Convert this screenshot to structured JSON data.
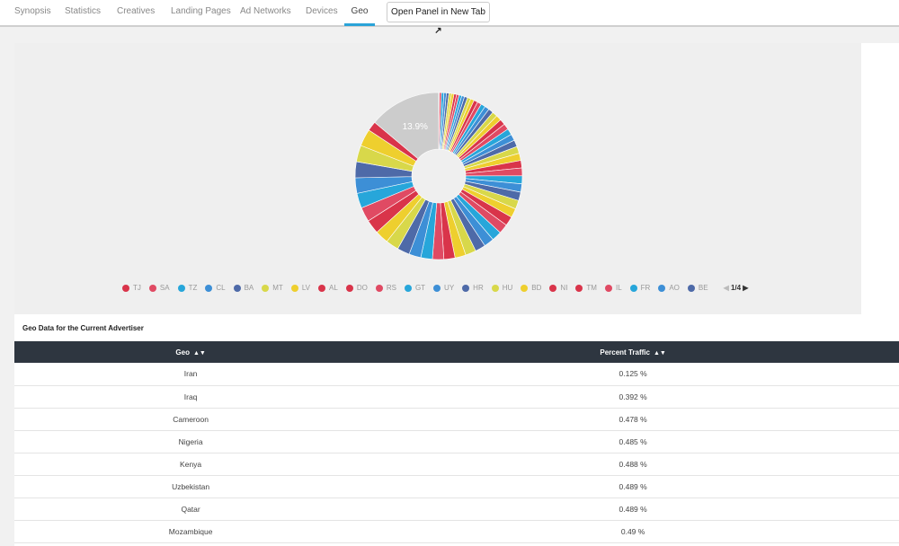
{
  "tabs": [
    "Synopsis",
    "Statistics",
    "Creatives",
    "Landing Pages",
    "Ad Networks",
    "Devices",
    "Geo"
  ],
  "active_tab": "Geo",
  "open_button": "Open Panel in New Tab",
  "open_icon": "external-link-icon",
  "chart_data": {
    "type": "pie",
    "other_label": "13.9%",
    "other_value": 13.9,
    "other_color": "#cccccc",
    "values": [
      0.125,
      0.392,
      0.478,
      0.485,
      0.488,
      0.489,
      0.489,
      0.49,
      0.5,
      0.52,
      0.55,
      0.6,
      0.65,
      0.7,
      0.75,
      0.8,
      0.85,
      0.9,
      0.95,
      1.0,
      1.05,
      1.1,
      1.15,
      1.2,
      1.25,
      1.3,
      1.35,
      1.4,
      1.45,
      1.5,
      1.55,
      1.6,
      1.65,
      1.7,
      1.75,
      1.8,
      1.85,
      1.9,
      1.95,
      2.0,
      2.05,
      2.1,
      2.15,
      2.2,
      2.25,
      2.3,
      2.4,
      2.5,
      2.6,
      2.7,
      2.8,
      2.9,
      3.0,
      3.1,
      3.2,
      3.3,
      1.84
    ],
    "palette": [
      "#d9344a",
      "#e04a63",
      "#27a6da",
      "#3d8fd6",
      "#4e6aa8",
      "#d8d84a",
      "#eecf2e"
    ],
    "legend": [
      {
        "label": "TJ",
        "color": "#d9344a"
      },
      {
        "label": "SA",
        "color": "#e04a63"
      },
      {
        "label": "TZ",
        "color": "#27a6da"
      },
      {
        "label": "CL",
        "color": "#3d8fd6"
      },
      {
        "label": "BA",
        "color": "#4e6aa8"
      },
      {
        "label": "MT",
        "color": "#d8d84a"
      },
      {
        "label": "LV",
        "color": "#eecf2e"
      },
      {
        "label": "AL",
        "color": "#d9344a"
      },
      {
        "label": "DO",
        "color": "#d9344a"
      },
      {
        "label": "RS",
        "color": "#e04a63"
      },
      {
        "label": "GT",
        "color": "#27a6da"
      },
      {
        "label": "UY",
        "color": "#3d8fd6"
      },
      {
        "label": "HR",
        "color": "#4e6aa8"
      },
      {
        "label": "HU",
        "color": "#d8d84a"
      },
      {
        "label": "BD",
        "color": "#eecf2e"
      },
      {
        "label": "NI",
        "color": "#d9344a"
      },
      {
        "label": "TM",
        "color": "#d9344a"
      },
      {
        "label": "IL",
        "color": "#e04a63"
      },
      {
        "label": "FR",
        "color": "#27a6da"
      },
      {
        "label": "AO",
        "color": "#3d8fd6"
      },
      {
        "label": "BE",
        "color": "#4e6aa8"
      }
    ],
    "page": "1/4"
  },
  "table": {
    "title": "Geo Data for the Current Advertiser",
    "columns": [
      "Geo",
      "Percent Traffic"
    ],
    "rows": [
      [
        "Iran",
        "0.125 %"
      ],
      [
        "Iraq",
        "0.392 %"
      ],
      [
        "Cameroon",
        "0.478 %"
      ],
      [
        "Nigeria",
        "0.485 %"
      ],
      [
        "Kenya",
        "0.488 %"
      ],
      [
        "Uzbekistan",
        "0.489 %"
      ],
      [
        "Qatar",
        "0.489 %"
      ],
      [
        "Mozambique",
        "0.49 %"
      ]
    ]
  }
}
